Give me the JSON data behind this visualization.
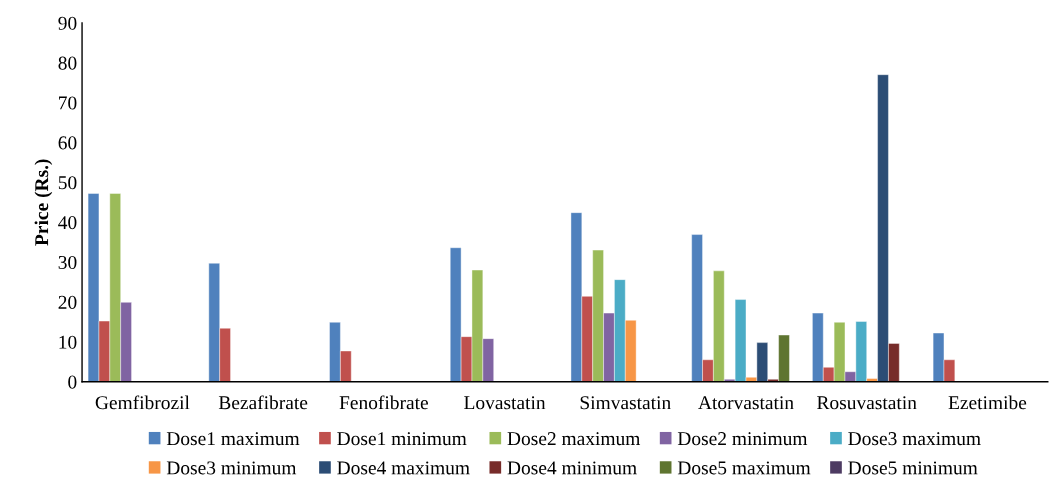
{
  "chart_data": {
    "type": "bar",
    "ylabel": "Price (Rs.)",
    "categories": [
      "Gemfibrozil",
      "Bezafibrate",
      "Fenofibrate",
      "Lovastatin",
      "Simvastatin",
      "Atorvastatin",
      "Rosuvastatin",
      "Ezetimibe"
    ],
    "ylim": [
      0,
      90
    ],
    "yticks": [
      0,
      10,
      20,
      30,
      40,
      50,
      60,
      70,
      80,
      90
    ],
    "grid": false,
    "legend": "bottom",
    "series": [
      {
        "name": "Dose1 maximum",
        "color": "#4f81bd",
        "values": [
          47.2,
          29.7,
          14.9,
          33.6,
          42.4,
          36.9,
          17.2,
          12.2
        ]
      },
      {
        "name": "Dose1 minimum",
        "color": "#c0504d",
        "values": [
          15.2,
          13.4,
          7.7,
          11.3,
          21.4,
          5.5,
          3.6,
          5.5
        ]
      },
      {
        "name": "Dose2 maximum",
        "color": "#9bbb59",
        "values": [
          47.2,
          null,
          null,
          28.0,
          33.0,
          27.8,
          14.9,
          null
        ]
      },
      {
        "name": "Dose2 minimum",
        "color": "#8064a2",
        "values": [
          19.9,
          null,
          null,
          10.8,
          17.2,
          0.6,
          2.5,
          null
        ]
      },
      {
        "name": "Dose3 maximum",
        "color": "#4bacc6",
        "values": [
          null,
          null,
          null,
          null,
          25.6,
          20.6,
          15.1,
          null
        ]
      },
      {
        "name": "Dose3 minimum",
        "color": "#f79646",
        "values": [
          null,
          null,
          null,
          null,
          15.4,
          1.1,
          0.8,
          null
        ]
      },
      {
        "name": "Dose4 maximum",
        "color": "#2c4d75",
        "values": [
          null,
          null,
          null,
          null,
          null,
          9.8,
          77.0,
          null
        ]
      },
      {
        "name": "Dose4 minimum",
        "color": "#772c2a",
        "values": [
          null,
          null,
          null,
          null,
          null,
          0.6,
          9.6,
          null
        ]
      },
      {
        "name": "Dose5 maximum",
        "color": "#5f7530",
        "values": [
          null,
          null,
          null,
          null,
          null,
          11.7,
          null,
          null
        ]
      },
      {
        "name": "Dose5 minimum",
        "color": "#4d3b62",
        "values": [
          null,
          null,
          null,
          null,
          null,
          null,
          null,
          null
        ]
      }
    ]
  }
}
